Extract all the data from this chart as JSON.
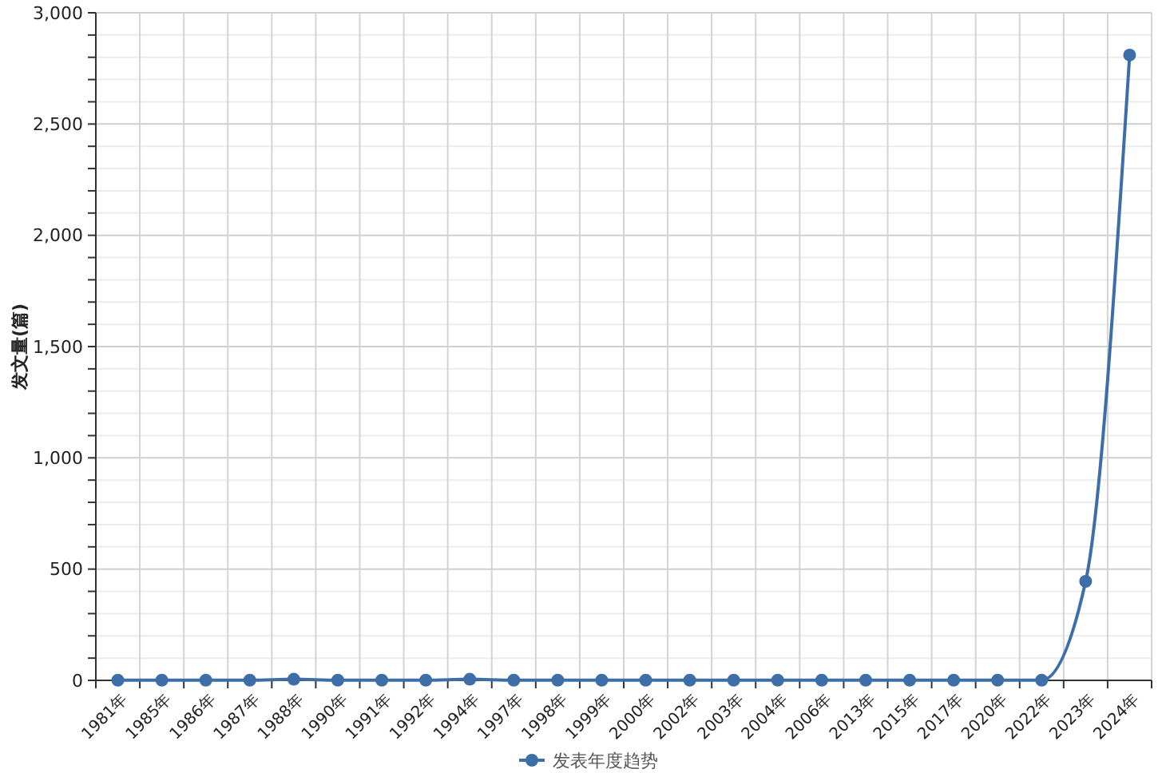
{
  "chart_data": {
    "type": "line",
    "ylabel": "发文量(篇)",
    "categories": [
      "1981年",
      "1985年",
      "1986年",
      "1987年",
      "1988年",
      "1990年",
      "1991年",
      "1992年",
      "1994年",
      "1997年",
      "1998年",
      "1999年",
      "2000年",
      "2002年",
      "2003年",
      "2004年",
      "2006年",
      "2013年",
      "2015年",
      "2017年",
      "2020年",
      "2022年",
      "2023年",
      "2024年"
    ],
    "series": [
      {
        "name": "发表年度趋势",
        "color": "#3d6ea8",
        "values": [
          1,
          1,
          1,
          1,
          5,
          1,
          1,
          1,
          5,
          1,
          1,
          1,
          1,
          1,
          1,
          1,
          1,
          1,
          1,
          1,
          1,
          1,
          445,
          2810
        ]
      }
    ],
    "ylim": [
      0,
      3000
    ],
    "yticks": [
      0,
      {
        "value": 100,
        "label": null
      },
      {
        "value": 200,
        "label": null
      },
      {
        "value": 300,
        "label": null
      },
      {
        "value": 400,
        "label": null
      },
      {
        "value": 500,
        "label": "500"
      },
      {
        "value": 600,
        "label": null
      },
      {
        "value": 700,
        "label": null
      },
      {
        "value": 800,
        "label": null
      },
      {
        "value": 900,
        "label": null
      },
      {
        "value": 1000,
        "label": "1,000"
      },
      {
        "value": 1100,
        "label": null
      },
      {
        "value": 1200,
        "label": null
      },
      {
        "value": 1300,
        "label": null
      },
      {
        "value": 1400,
        "label": null
      },
      {
        "value": 1500,
        "label": "1,500"
      },
      {
        "value": 1600,
        "label": null
      },
      {
        "value": 1700,
        "label": null
      },
      {
        "value": 1800,
        "label": null
      },
      {
        "value": 1900,
        "label": null
      },
      {
        "value": 2000,
        "label": "2,000"
      },
      {
        "value": 2100,
        "label": null
      },
      {
        "value": 2200,
        "label": null
      },
      {
        "value": 2300,
        "label": null
      },
      {
        "value": 2400,
        "label": null
      },
      {
        "value": 2500,
        "label": "2,500"
      },
      {
        "value": 2600,
        "label": null
      },
      {
        "value": 2700,
        "label": null
      },
      {
        "value": 2800,
        "label": null
      },
      {
        "value": 2900,
        "label": null
      },
      {
        "value": 3000,
        "label": "3,000"
      }
    ],
    "grid": true,
    "legend": "bottom",
    "marker": "circle",
    "line_style": "solid"
  }
}
